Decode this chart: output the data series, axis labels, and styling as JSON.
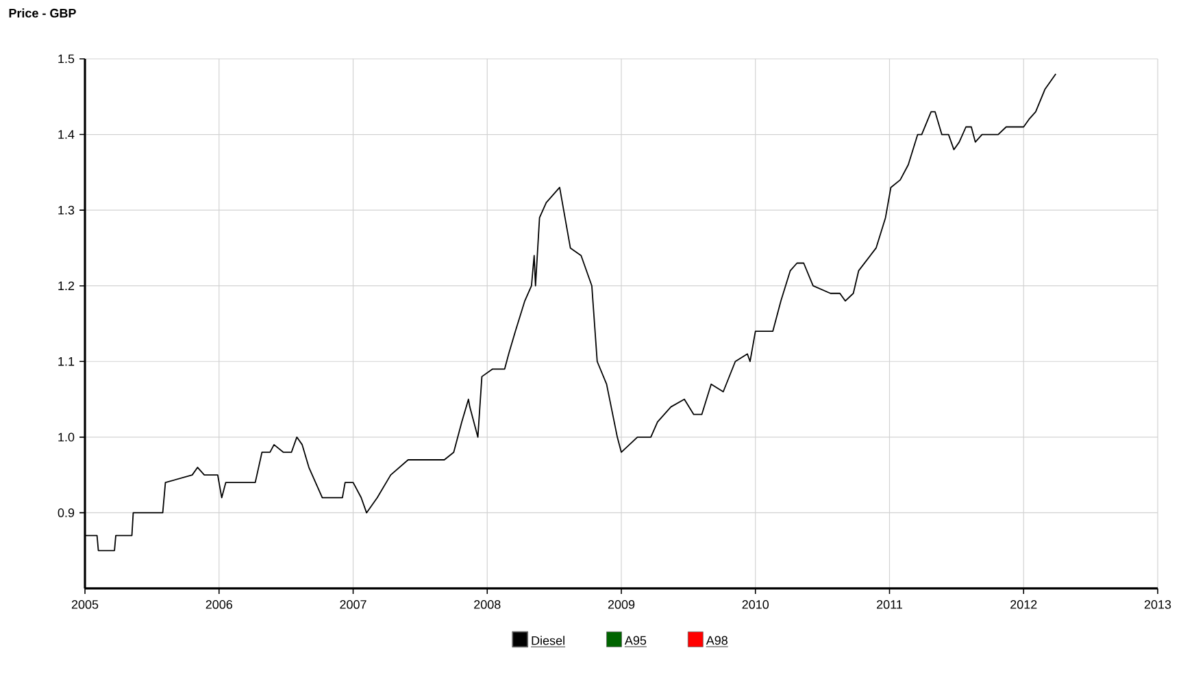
{
  "chart_data": {
    "type": "line",
    "title": "Price - GBP",
    "xlim": [
      2005,
      2013
    ],
    "xticks": [
      2005,
      2006,
      2007,
      2008,
      2009,
      2010,
      2011,
      2012,
      2013
    ],
    "ylim": [
      0.8,
      1.5
    ],
    "yticks": [
      0.9,
      {
        "value": 1.0,
        "label": "1.0"
      },
      1.1,
      1.2,
      1.3,
      1.4,
      1.5
    ],
    "grid": true,
    "legend": "bottom",
    "marker": "none",
    "line_style": "solid",
    "series": [
      {
        "name": "Diesel",
        "color": "#000000",
        "x": [
          2005.0,
          2005.09,
          2005.1,
          2005.22,
          2005.23,
          2005.35,
          2005.36,
          2005.58,
          2005.6,
          2005.8,
          2005.84,
          2005.89,
          2005.99,
          2006.02,
          2006.05,
          2006.27,
          2006.32,
          2006.38,
          2006.41,
          2006.48,
          2006.54,
          2006.58,
          2006.62,
          2006.67,
          2006.77,
          2006.92,
          2006.94,
          2007.0,
          2007.06,
          2007.1,
          2007.18,
          2007.28,
          2007.41,
          2007.55,
          2007.68,
          2007.75,
          2007.81,
          2007.86,
          2007.87,
          2007.9,
          2007.93,
          2007.96,
          2008.04,
          2008.13,
          2008.16,
          2008.21,
          2008.28,
          2008.33,
          2008.35,
          2008.36,
          2008.39,
          2008.44,
          2008.54,
          2008.62,
          2008.7,
          2008.78,
          2008.82,
          2008.89,
          2008.97,
          2009.0,
          2009.12,
          2009.22,
          2009.27,
          2009.37,
          2009.47,
          2009.54,
          2009.6,
          2009.67,
          2009.76,
          2009.85,
          2009.94,
          2009.96,
          2010.0,
          2010.13,
          2010.19,
          2010.26,
          2010.31,
          2010.36,
          2010.43,
          2010.56,
          2010.63,
          2010.67,
          2010.73,
          2010.77,
          2010.9,
          2010.97,
          2011.01,
          2011.08,
          2011.14,
          2011.21,
          2011.24,
          2011.31,
          2011.34,
          2011.39,
          2011.44,
          2011.48,
          2011.52,
          2011.57,
          2011.61,
          2011.64,
          2011.69,
          2011.76,
          2011.81,
          2011.87,
          2011.96,
          2012.0,
          2012.04,
          2012.09,
          2012.16,
          2012.24
        ],
        "values": [
          0.87,
          0.87,
          0.85,
          0.85,
          0.87,
          0.87,
          0.9,
          0.9,
          0.94,
          0.95,
          0.96,
          0.95,
          0.95,
          0.92,
          0.94,
          0.94,
          0.98,
          0.98,
          0.99,
          0.98,
          0.98,
          1.0,
          0.99,
          0.96,
          0.92,
          0.92,
          0.94,
          0.94,
          0.92,
          0.9,
          0.92,
          0.95,
          0.97,
          0.97,
          0.97,
          0.98,
          1.02,
          1.05,
          1.04,
          1.02,
          1.0,
          1.08,
          1.09,
          1.09,
          1.11,
          1.14,
          1.18,
          1.2,
          1.24,
          1.2,
          1.29,
          1.31,
          1.33,
          1.25,
          1.24,
          1.2,
          1.1,
          1.07,
          1.0,
          0.98,
          1.0,
          1.0,
          1.02,
          1.04,
          1.05,
          1.03,
          1.03,
          1.07,
          1.06,
          1.1,
          1.11,
          1.1,
          1.14,
          1.14,
          1.18,
          1.22,
          1.23,
          1.23,
          1.2,
          1.19,
          1.19,
          1.18,
          1.19,
          1.22,
          1.25,
          1.29,
          1.33,
          1.34,
          1.36,
          1.4,
          1.4,
          1.43,
          1.43,
          1.4,
          1.4,
          1.38,
          1.39,
          1.41,
          1.41,
          1.39,
          1.4,
          1.4,
          1.4,
          1.41,
          1.41,
          1.41,
          1.42,
          1.43,
          1.46,
          1.48
        ]
      },
      {
        "name": "A95",
        "color": "#006400"
      },
      {
        "name": "A98",
        "color": "#ff0000"
      }
    ]
  }
}
